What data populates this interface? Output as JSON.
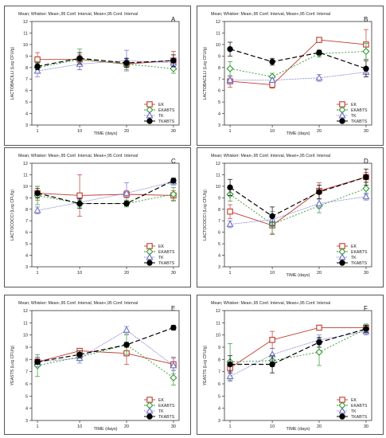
{
  "figure": {
    "header": "Mean; Whisker: Mean-,95 Conf. Interval, Mean+,95 Conf. Interval",
    "legend_items": [
      "EK",
      "EKABTS",
      "TK",
      "TKABTS"
    ],
    "series_styles": [
      {
        "color": "#c0392b",
        "marker": "square",
        "dash": ""
      },
      {
        "color": "#2e9a2e",
        "marker": "diamond",
        "dash": "2,2"
      },
      {
        "color": "#7070c8",
        "marker": "triangle",
        "dash": "1,1"
      },
      {
        "color": "#000000",
        "marker": "circle",
        "dash": "6,3"
      }
    ]
  },
  "chart_data": [
    {
      "type": "line",
      "panel": "A",
      "xlabel": "TIME (days)",
      "ylabel": "LACTOBACILLI (Log CFU/g)",
      "x": [
        1,
        10,
        20,
        30
      ],
      "ylim": [
        3,
        12
      ],
      "x_ticks": [
        "1",
        "10",
        "20",
        "30"
      ],
      "y_ticks": [
        3,
        4,
        5,
        6,
        7,
        8,
        9,
        10,
        11,
        12
      ],
      "series": [
        {
          "name": "EK",
          "values": [
            8.7,
            8.7,
            8.3,
            8.6
          ],
          "ci": [
            0.6,
            0.4,
            0.3,
            0.8
          ]
        },
        {
          "name": "EKABTS",
          "values": [
            8.0,
            8.7,
            8.3,
            7.9
          ],
          "ci": [
            0.5,
            0.9,
            0.5,
            0.4
          ]
        },
        {
          "name": "TK",
          "values": [
            7.7,
            8.3,
            8.6,
            8.4
          ],
          "ci": [
            0.5,
            0.5,
            0.9,
            0.4
          ]
        },
        {
          "name": "TKABTS",
          "values": [
            8.1,
            8.8,
            8.4,
            8.6
          ],
          "ci": [
            0.3,
            0.5,
            0.4,
            0.5
          ]
        }
      ]
    },
    {
      "type": "line",
      "panel": "B",
      "xlabel": "TIME (days)",
      "ylabel": "LACTOBACILLI (Log CFU/g)",
      "x": [
        1,
        10,
        20,
        30
      ],
      "ylim": [
        3,
        12
      ],
      "x_ticks": [
        "1",
        "10",
        "20",
        "30"
      ],
      "y_ticks": [
        3,
        4,
        5,
        6,
        7,
        8,
        9,
        10,
        11,
        12
      ],
      "series": [
        {
          "name": "EK",
          "values": [
            6.8,
            6.5,
            10.4,
            10.0
          ],
          "ci": [
            0.5,
            0.3,
            0.2,
            1.3
          ]
        },
        {
          "name": "EKABTS",
          "values": [
            7.9,
            7.2,
            9.2,
            9.4
          ],
          "ci": [
            0.6,
            0.3,
            0.3,
            0.7
          ]
        },
        {
          "name": "TK",
          "values": [
            6.9,
            6.9,
            7.1,
            7.6
          ],
          "ci": [
            0.3,
            0.2,
            0.3,
            0.4
          ]
        },
        {
          "name": "TKABTS",
          "values": [
            9.6,
            8.5,
            9.3,
            7.9
          ],
          "ci": [
            0.6,
            0.3,
            0.2,
            0.7
          ]
        }
      ]
    },
    {
      "type": "line",
      "panel": "C",
      "xlabel": "",
      "ylabel": "LACTOCOCCI (Log CFU/g)",
      "x": [
        1,
        10,
        20,
        30
      ],
      "ylim": [
        3,
        12
      ],
      "x_ticks": [
        "1",
        "10",
        "20",
        "30"
      ],
      "y_ticks": [
        3,
        4,
        5,
        6,
        7,
        8,
        9,
        10,
        11,
        12
      ],
      "series": [
        {
          "name": "EK",
          "values": [
            9.4,
            9.2,
            9.3,
            9.2
          ],
          "ci": [
            0.6,
            1.8,
            0.3,
            0.4
          ]
        },
        {
          "name": "EKABTS",
          "values": [
            9.2,
            8.5,
            8.5,
            9.3
          ],
          "ci": [
            0.8,
            0.3,
            0.3,
            0.6
          ]
        },
        {
          "name": "TK",
          "values": [
            7.9,
            8.6,
            9.4,
            10.4
          ],
          "ci": [
            0.3,
            0.3,
            0.9,
            0.3
          ]
        },
        {
          "name": "TKABTS",
          "values": [
            9.4,
            8.5,
            8.5,
            10.5
          ],
          "ci": [
            0.4,
            0.4,
            0.2,
            0.2
          ]
        }
      ]
    },
    {
      "type": "line",
      "panel": "D",
      "xlabel": "TIME (days)",
      "ylabel": "LACTOCOCCI (Log CFU/g)",
      "x": [
        1,
        10,
        20,
        30
      ],
      "ylim": [
        3,
        12
      ],
      "x_ticks": [
        "1",
        "10",
        "20",
        "30"
      ],
      "y_ticks": [
        3,
        4,
        5,
        6,
        7,
        8,
        9,
        10,
        11,
        12
      ],
      "series": [
        {
          "name": "EK",
          "values": [
            7.8,
            6.6,
            9.6,
            10.8
          ],
          "ci": [
            0.6,
            0.8,
            0.7,
            0.4
          ]
        },
        {
          "name": "EKABTS",
          "values": [
            9.3,
            6.7,
            8.3,
            9.8
          ],
          "ci": [
            0.6,
            0.8,
            0.6,
            0.5
          ]
        },
        {
          "name": "TK",
          "values": [
            6.7,
            7.1,
            8.5,
            9.1
          ],
          "ci": [
            0.3,
            0.7,
            0.4,
            0.3
          ]
        },
        {
          "name": "TKABTS",
          "values": [
            9.9,
            7.4,
            9.5,
            10.8
          ],
          "ci": [
            0.7,
            0.8,
            0.6,
            0.7
          ]
        }
      ]
    },
    {
      "type": "line",
      "panel": "E",
      "xlabel": "TIME (days)",
      "ylabel": "YEASTS (Log CFU/g)",
      "x": [
        1,
        10,
        20,
        30
      ],
      "ylim": [
        3,
        12
      ],
      "x_ticks": [
        "1",
        "10",
        "20",
        "30"
      ],
      "y_ticks": [
        3,
        4,
        5,
        6,
        7,
        8,
        9,
        10,
        11,
        12
      ],
      "series": [
        {
          "name": "EK",
          "values": [
            7.8,
            8.7,
            8.5,
            7.6
          ],
          "ci": [
            0.3,
            0.2,
            0.9,
            0.5
          ]
        },
        {
          "name": "EKABTS",
          "values": [
            7.5,
            8.2,
            9.2,
            6.5
          ],
          "ci": [
            0.9,
            0.3,
            0.8,
            0.6
          ]
        },
        {
          "name": "TK",
          "values": [
            7.8,
            8.1,
            10.4,
            7.5
          ],
          "ci": [
            0.4,
            0.4,
            0.3,
            0.7
          ]
        },
        {
          "name": "TKABTS",
          "values": [
            7.8,
            8.4,
            9.2,
            10.6
          ],
          "ci": [
            0.2,
            0.3,
            0.2,
            0.2
          ]
        }
      ]
    },
    {
      "type": "line",
      "panel": "F",
      "xlabel": "TIME (days)",
      "ylabel": "YEASTS (Log CFU/g)",
      "x": [
        1,
        10,
        20,
        30
      ],
      "ylim": [
        3,
        12
      ],
      "x_ticks": [
        "1",
        "10",
        "20",
        "30"
      ],
      "y_ticks": [
        3,
        4,
        5,
        6,
        7,
        8,
        9,
        10,
        11,
        12
      ],
      "series": [
        {
          "name": "EK",
          "values": [
            7.3,
            9.6,
            10.6,
            10.6
          ],
          "ci": [
            0.4,
            0.7,
            0.2,
            0.2
          ]
        },
        {
          "name": "EKABTS",
          "values": [
            7.8,
            7.9,
            8.6,
            10.5
          ],
          "ci": [
            1.5,
            0.5,
            1.1,
            0.4
          ]
        },
        {
          "name": "TK",
          "values": [
            6.6,
            8.4,
            9.6,
            10.3
          ],
          "ci": [
            0.4,
            0.5,
            0.4,
            0.3
          ]
        },
        {
          "name": "TKABTS",
          "values": [
            7.6,
            7.6,
            9.4,
            10.5
          ],
          "ci": [
            0.7,
            0.7,
            0.4,
            0.3
          ]
        }
      ]
    }
  ]
}
